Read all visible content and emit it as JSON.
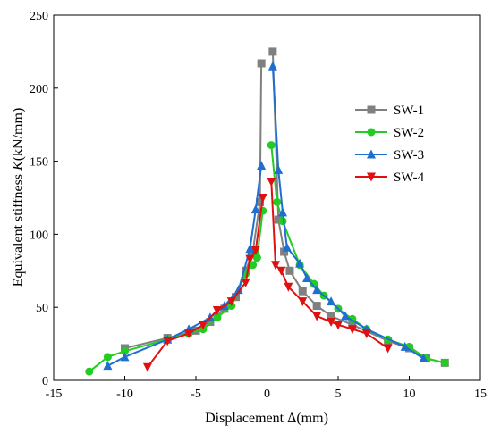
{
  "chart_data": {
    "type": "line",
    "xlabel": "Displacement Δ(mm)",
    "ylabel_parts": [
      "Equivalent stiffness ",
      "K",
      "(kN/mm)"
    ],
    "xlim": [
      -15,
      15
    ],
    "ylim": [
      0,
      250
    ],
    "xticks": [
      -15,
      -10,
      -5,
      0,
      5,
      10,
      15
    ],
    "yticks": [
      0,
      50,
      100,
      150,
      200,
      250
    ],
    "xtick_labels": [
      "-15",
      "-10",
      "-5",
      "0",
      "5",
      "10",
      "15"
    ],
    "ytick_labels": [
      "0",
      "50",
      "100",
      "150",
      "200",
      "250"
    ],
    "grid": false,
    "legend_position": "right",
    "series": [
      {
        "name": "SW-1",
        "color": "#808080",
        "marker": "square",
        "points": [
          [
            -10,
            22
          ],
          [
            -7,
            29
          ],
          [
            -5,
            34
          ],
          [
            -4,
            40
          ],
          [
            -3,
            49
          ],
          [
            -2.2,
            57
          ],
          [
            -1.5,
            75
          ],
          [
            -1,
            88
          ],
          [
            -0.5,
            122
          ],
          [
            -0.4,
            217
          ],
          [
            0.4,
            225
          ],
          [
            0.8,
            110
          ],
          [
            1.2,
            88
          ],
          [
            1.6,
            75
          ],
          [
            2.5,
            61
          ],
          [
            3.5,
            51
          ],
          [
            4.5,
            44
          ],
          [
            6,
            38
          ],
          [
            8.5,
            27
          ],
          [
            10,
            22
          ],
          [
            11.2,
            15
          ],
          [
            12.5,
            12
          ]
        ]
      },
      {
        "name": "SW-2",
        "color": "#22cc22",
        "marker": "circle",
        "points": [
          [
            -12.5,
            6
          ],
          [
            -11.2,
            16
          ],
          [
            -10,
            20
          ],
          [
            -7,
            28
          ],
          [
            -5.5,
            32
          ],
          [
            -4.5,
            35
          ],
          [
            -3.5,
            43
          ],
          [
            -2.5,
            51
          ],
          [
            -1.5,
            73
          ],
          [
            -1,
            79
          ],
          [
            -0.7,
            84
          ],
          [
            -0.3,
            116
          ],
          [
            0.3,
            161
          ],
          [
            0.7,
            122
          ],
          [
            1.1,
            109
          ],
          [
            2.3,
            79
          ],
          [
            3.3,
            66
          ],
          [
            4,
            58
          ],
          [
            5,
            49
          ],
          [
            6,
            42
          ],
          [
            7,
            35
          ],
          [
            8.5,
            28
          ],
          [
            10,
            23
          ],
          [
            11.2,
            15
          ],
          [
            12.5,
            12
          ]
        ]
      },
      {
        "name": "SW-3",
        "color": "#1f6fd0",
        "marker": "triangle-up",
        "points": [
          [
            -11.2,
            10
          ],
          [
            -10,
            16
          ],
          [
            -7,
            28
          ],
          [
            -5.5,
            35
          ],
          [
            -4,
            43
          ],
          [
            -3,
            51
          ],
          [
            -2,
            62
          ],
          [
            -1.2,
            90
          ],
          [
            -0.8,
            117
          ],
          [
            -0.4,
            147
          ],
          [
            0.4,
            215
          ],
          [
            0.8,
            144
          ],
          [
            1.1,
            115
          ],
          [
            1.4,
            91
          ],
          [
            2.3,
            80
          ],
          [
            2.8,
            70
          ],
          [
            3.5,
            62
          ],
          [
            4.5,
            54
          ],
          [
            5.5,
            44
          ],
          [
            7,
            35
          ],
          [
            9.7,
            23
          ],
          [
            11,
            15
          ]
        ]
      },
      {
        "name": "SW-4",
        "color": "#e01010",
        "marker": "triangle-down",
        "points": [
          [
            -8.4,
            9
          ],
          [
            -7,
            27
          ],
          [
            -5.5,
            32
          ],
          [
            -4.5,
            38
          ],
          [
            -3.5,
            48
          ],
          [
            -2.5,
            54
          ],
          [
            -1.5,
            67
          ],
          [
            -1.2,
            83
          ],
          [
            -0.8,
            89
          ],
          [
            -0.3,
            125
          ],
          [
            0.3,
            136
          ],
          [
            0.6,
            79
          ],
          [
            1,
            75
          ],
          [
            1.5,
            64
          ],
          [
            2.5,
            54
          ],
          [
            3.5,
            44
          ],
          [
            4.5,
            40
          ],
          [
            5,
            38
          ],
          [
            6,
            35
          ],
          [
            7,
            32
          ],
          [
            8.5,
            22
          ]
        ]
      }
    ]
  }
}
